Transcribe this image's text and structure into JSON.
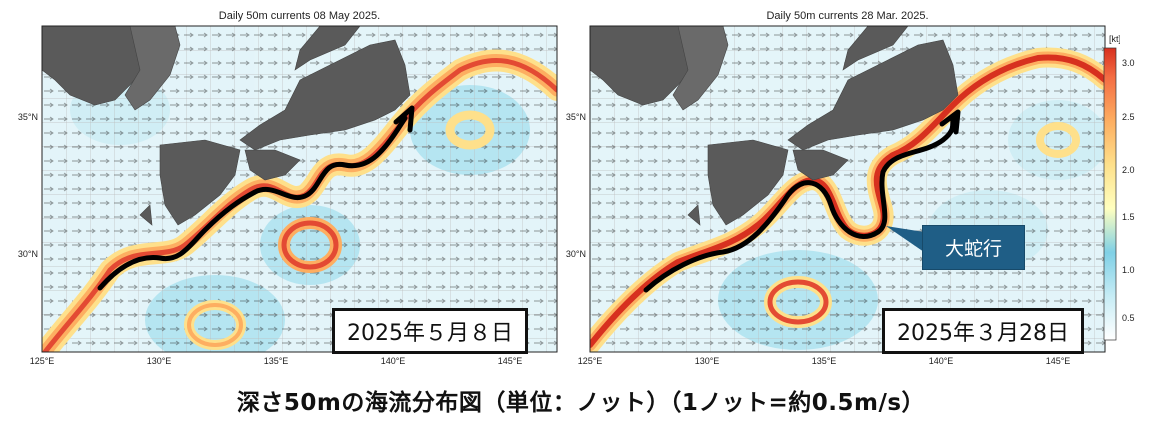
{
  "panels": [
    {
      "title": "Daily 50m currents 08 May 2025.",
      "date_label": "2025年５月８日",
      "lon_ticks": [
        "125°E",
        "130°E",
        "135°E",
        "140°E",
        "145°E"
      ],
      "lat_ticks": [
        "35°N",
        "30°N"
      ]
    },
    {
      "title": "Daily 50m currents 28 Mar. 2025.",
      "date_label": "2025年３月28日",
      "callout": "大蛇行",
      "lon_ticks": [
        "125°E",
        "130°E",
        "135°E",
        "140°E",
        "145°E"
      ],
      "lat_ticks": [
        "35°N",
        "30°N"
      ]
    }
  ],
  "colorbar": {
    "unit": "[kt]",
    "ticks": [
      "3.0",
      "2.5",
      "2.0",
      "1.5",
      "1.0",
      "0.5"
    ]
  },
  "caption": "深さ50mの海流分布図（単位：ノット）（1ノット=約0.5m/s）",
  "colors": {
    "land": "#5a5a5a",
    "path_arrow": "#000000",
    "callout_bg": "#1f5e86",
    "current_strong": "#d7301f",
    "current_mid": "#fdae61",
    "current_low": "#8fd3e8"
  }
}
